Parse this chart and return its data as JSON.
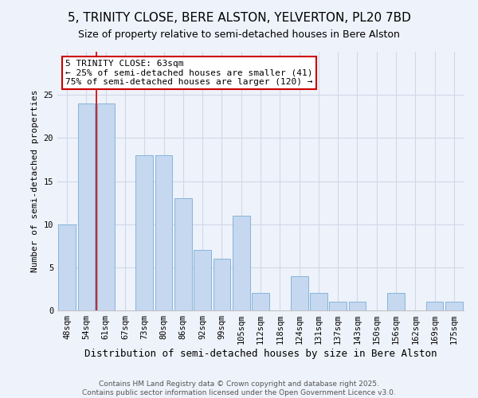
{
  "title": "5, TRINITY CLOSE, BERE ALSTON, YELVERTON, PL20 7BD",
  "subtitle": "Size of property relative to semi-detached houses in Bere Alston",
  "xlabel": "Distribution of semi-detached houses by size in Bere Alston",
  "ylabel": "Number of semi-detached properties",
  "categories": [
    "48sqm",
    "54sqm",
    "61sqm",
    "67sqm",
    "73sqm",
    "80sqm",
    "86sqm",
    "92sqm",
    "99sqm",
    "105sqm",
    "112sqm",
    "118sqm",
    "124sqm",
    "131sqm",
    "137sqm",
    "143sqm",
    "150sqm",
    "156sqm",
    "162sqm",
    "169sqm",
    "175sqm"
  ],
  "values": [
    10,
    24,
    24,
    0,
    18,
    18,
    13,
    7,
    6,
    11,
    2,
    0,
    4,
    2,
    1,
    1,
    0,
    2,
    0,
    1,
    1
  ],
  "bar_color": "#c5d8f0",
  "bar_edge_color": "#7aadd4",
  "annotation_label": "5 TRINITY CLOSE: 63sqm",
  "annotation_smaller": "← 25% of semi-detached houses are smaller (41)",
  "annotation_larger": "75% of semi-detached houses are larger (120) →",
  "annotation_box_facecolor": "#ffffff",
  "annotation_box_edgecolor": "#cc0000",
  "vline_color": "#cc0000",
  "vline_x": 1.5,
  "ylim": [
    0,
    30
  ],
  "yticks": [
    0,
    5,
    10,
    15,
    20,
    25
  ],
  "grid_color": "#d0d8e8",
  "background_color": "#eef2fa",
  "title_fontsize": 11,
  "subtitle_fontsize": 9,
  "xlabel_fontsize": 9,
  "ylabel_fontsize": 8,
  "tick_fontsize": 7.5,
  "annot_fontsize": 8,
  "footnote_fontsize": 6.5
}
